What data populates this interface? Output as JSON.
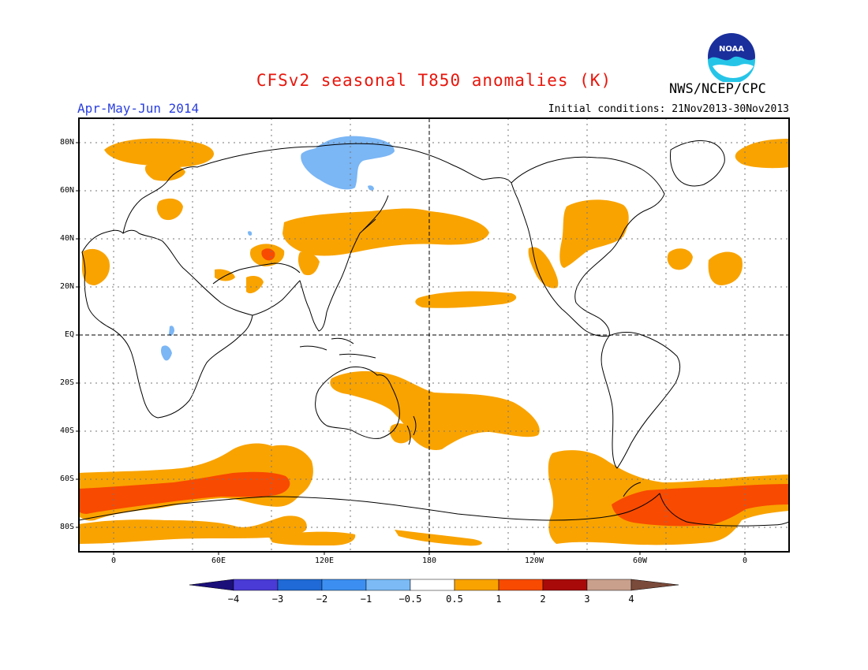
{
  "header": {
    "title": "CFSv2 seasonal T850 anomalies (K)",
    "period": "Apr-May-Jun 2014",
    "initial_conditions": "Initial conditions: 21Nov2013-30Nov2013",
    "agency": "NWS/NCEP/CPC",
    "logo_text": "NOAA"
  },
  "colors": {
    "title": "#e8160c",
    "period": "#2a3fdd",
    "warm_05_1": "#f9a300",
    "warm_1_2": "#f84a00",
    "warm_2_3": "#e8160c",
    "cool_m1_m05": "#7bb6f5",
    "cool_m2_m1": "#4b97ee"
  },
  "axes": {
    "lat_labels": [
      "80N",
      "60N",
      "40N",
      "20N",
      "EQ",
      "20S",
      "40S",
      "60S",
      "80S"
    ],
    "lon_labels": [
      "0",
      "60E",
      "120E",
      "180",
      "120W",
      "60W",
      "0"
    ]
  },
  "colorbar": {
    "labels": [
      "−4",
      "−3",
      "−2",
      "−1",
      "−0.5",
      "0.5",
      "1",
      "2",
      "3",
      "4"
    ],
    "colors": [
      "#1b0f7a",
      "#4a3bd6",
      "#1f6ad6",
      "#3c8ff0",
      "#7bbaf5",
      "#ffffff",
      "#f9a300",
      "#f84a00",
      "#a80a0a",
      "#c9a08c",
      "#7a4a3a"
    ]
  }
}
